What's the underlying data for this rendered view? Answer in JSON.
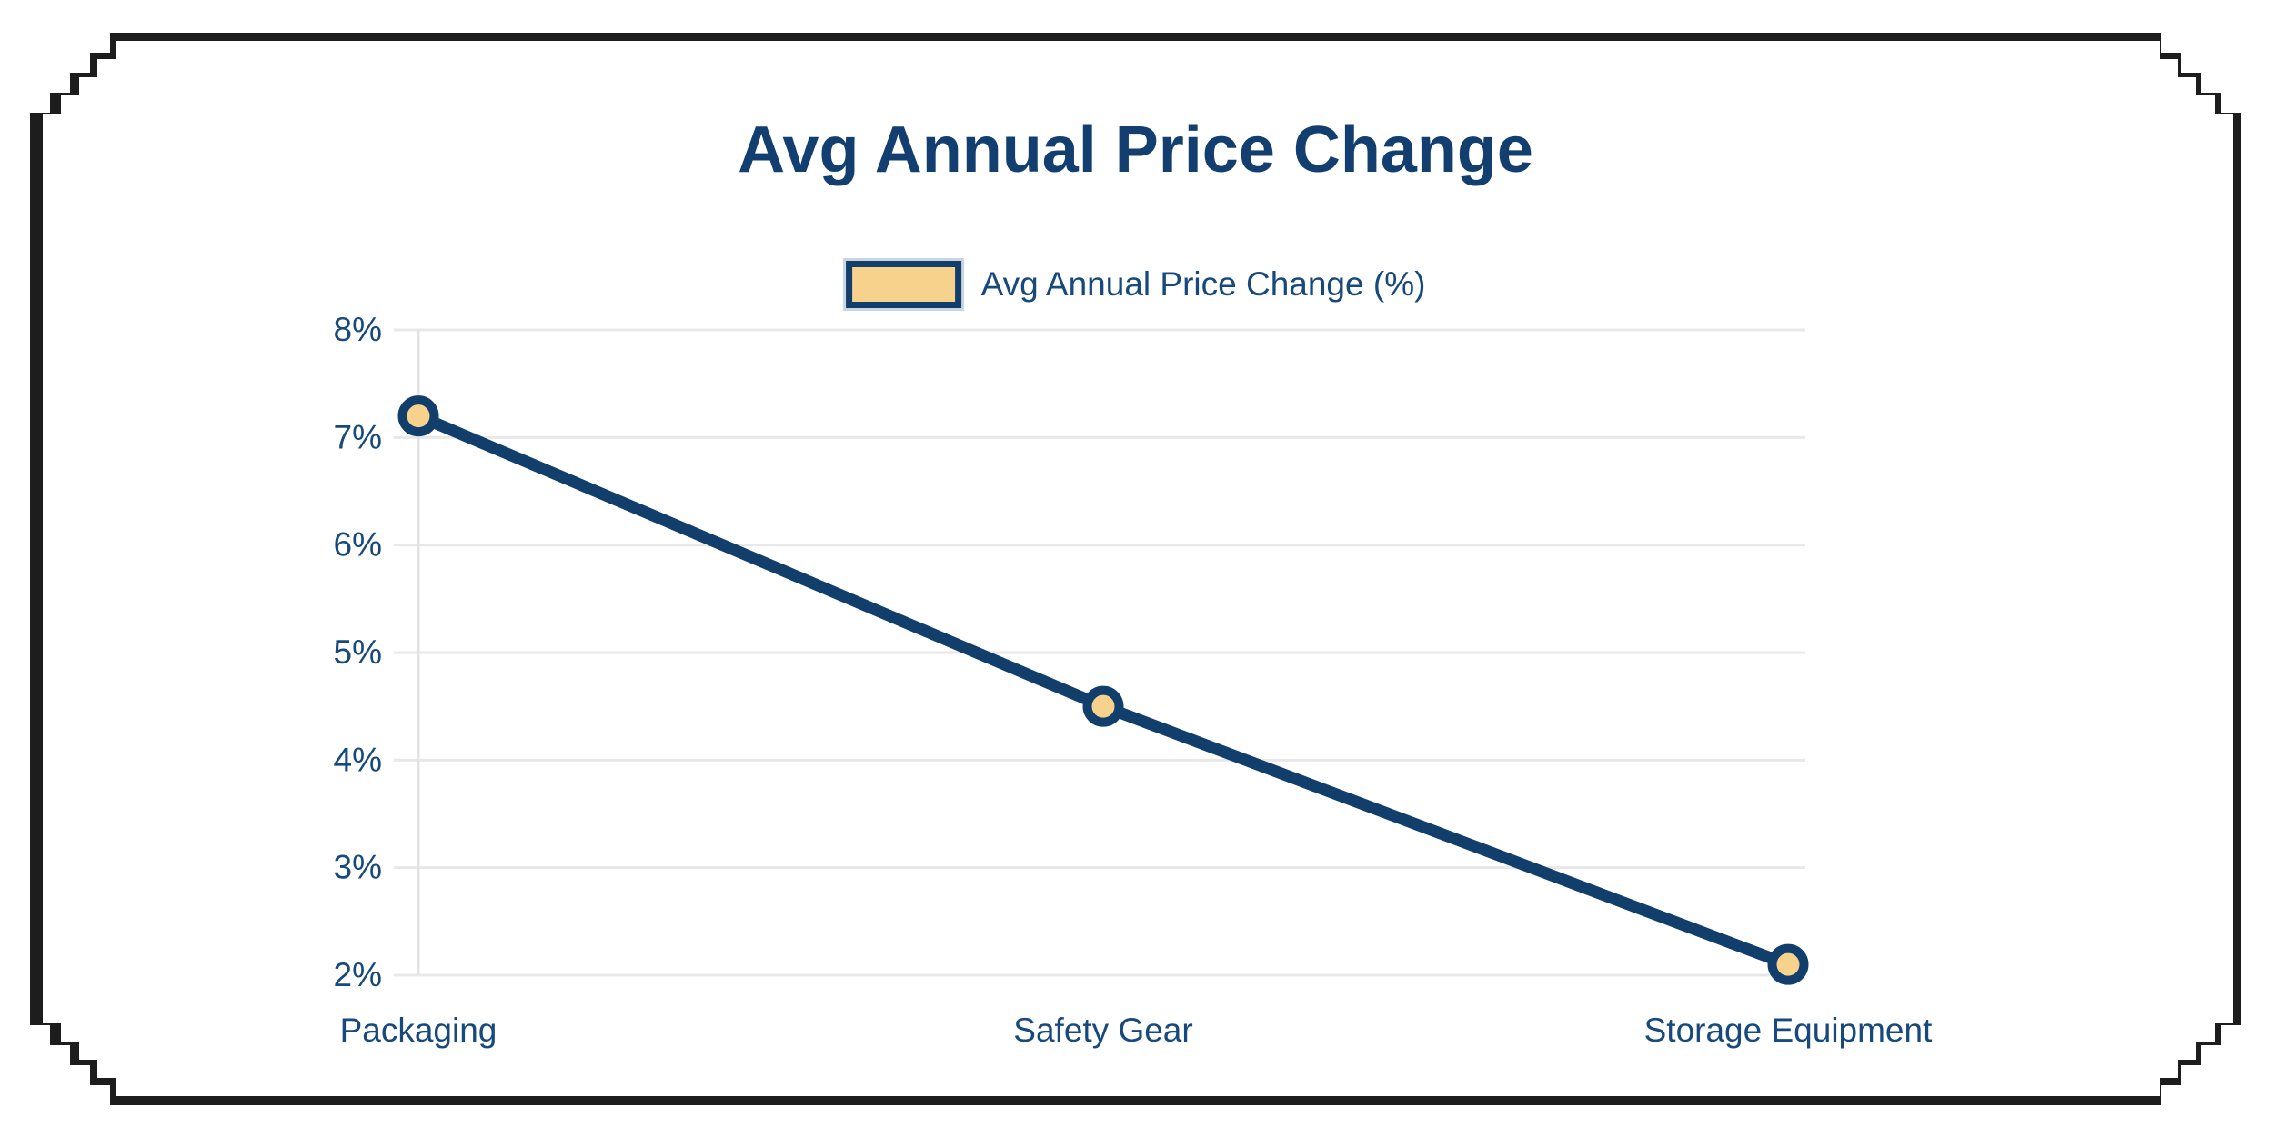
{
  "frame": {
    "color": "#1d1d1d"
  },
  "chart_data": {
    "type": "line",
    "title": "Avg Annual Price Change",
    "categories": [
      "Packaging",
      "Safety Gear",
      "Storage Equipment"
    ],
    "series": [
      {
        "name": "Avg Annual Price Change (%)",
        "values": [
          7.2,
          4.5,
          2.1
        ]
      }
    ],
    "ylim": [
      2,
      8
    ],
    "ytick_step": 1,
    "yticks": [
      "2%",
      "3%",
      "4%",
      "5%",
      "6%",
      "7%",
      "8%"
    ],
    "grid": "horizontal-light",
    "legend_position": "top-center",
    "colors": {
      "line": "#123e6b",
      "marker_fill": "#f6d28c",
      "marker_border": "#123e6b",
      "grid": "#e8e8e8",
      "axis_line": "#e3e3e3",
      "tick_text": "#17497c",
      "title": "#123f6f",
      "legend_swatch_outline": "#c9d5e2"
    }
  }
}
